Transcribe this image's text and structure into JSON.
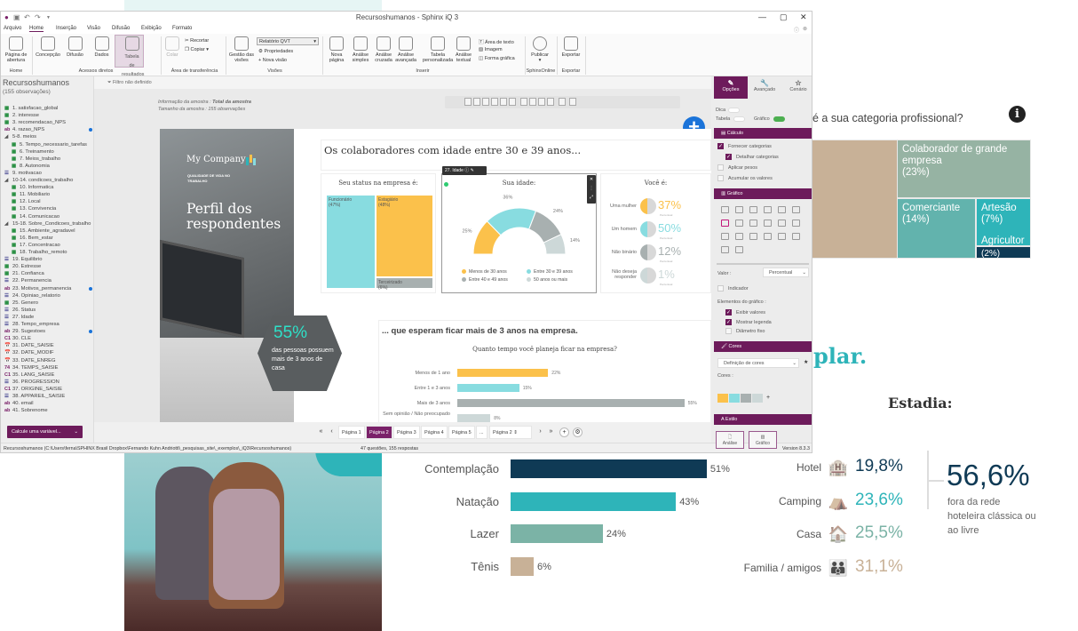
{
  "window": {
    "title": "Recursoshumanos - Sphinx iQ 3",
    "controls": [
      "—",
      "▢",
      "✕"
    ],
    "quick_access": [
      "sphinx-logo",
      "save-icon",
      "undo-icon",
      "redo-icon",
      "dropdown-icon"
    ]
  },
  "menu": [
    "Arquivo",
    "Home",
    "Inserção",
    "Visão",
    "Difusão",
    "Exibição",
    "Formato"
  ],
  "menu_active": "Home",
  "ribbon": {
    "home_group": {
      "label": "Home",
      "buttons": [
        "Página de abertura"
      ]
    },
    "acessos_group": {
      "label": "Acessos diretos",
      "buttons": [
        "Concepção",
        "Difusão",
        "Dados",
        "Tabela de resultados"
      ]
    },
    "transfer_group": {
      "label": "Área de transferência",
      "colar": "Colar",
      "recortar": "Recortar",
      "copiar": "Copiar"
    },
    "visoes_group": {
      "label": "Visões",
      "gestao": "Gestão das visões",
      "select": "Relatório QVT",
      "propriedades": "Propriedades",
      "nova_visao": "Nova visão"
    },
    "inserir_group": {
      "label": "Inserir",
      "buttons": [
        "Nova página",
        "Análise simples",
        "Análise cruzada",
        "Análise avançada",
        "Tabela personalizada",
        "Análise textual"
      ],
      "small": [
        "Área de texto",
        "Imagem",
        "Forma gráfica"
      ]
    },
    "sphinx_group": {
      "label": "SphinxOnline",
      "button": "Publicar"
    },
    "export_group": {
      "label": "Exportar",
      "button": "Exportar"
    }
  },
  "left_panel": {
    "title": "Recursoshumanos",
    "subtitle": "(155 observações)",
    "variables": [
      {
        "t": "q",
        "l": "1. satisfacao_global",
        "d": 0
      },
      {
        "t": "q",
        "l": "2. interesse",
        "d": 0
      },
      {
        "t": "q",
        "l": "3. recomendacao_NPS",
        "d": 0
      },
      {
        "t": "ab",
        "l": "4. razao_NPS",
        "d": 0,
        "dot": true
      },
      {
        "t": "g",
        "l": "5-8. meios",
        "d": 0
      },
      {
        "t": "q",
        "l": "5. Tempo_necessario_tarefas",
        "d": 1
      },
      {
        "t": "q",
        "l": "6. Treinamento",
        "d": 1
      },
      {
        "t": "q",
        "l": "7. Meios_trabalho",
        "d": 1
      },
      {
        "t": "q",
        "l": "8. Autonomia",
        "d": 1
      },
      {
        "t": "ql",
        "l": "9. motivacao",
        "d": 0
      },
      {
        "t": "g",
        "l": "10-14. condicoes_trabalho",
        "d": 0
      },
      {
        "t": "q",
        "l": "10. Informatica",
        "d": 1
      },
      {
        "t": "q",
        "l": "11. Mobiliario",
        "d": 1
      },
      {
        "t": "q",
        "l": "12. Local",
        "d": 1
      },
      {
        "t": "q",
        "l": "13. Convivencia",
        "d": 1
      },
      {
        "t": "q",
        "l": "14. Comunicacao",
        "d": 1
      },
      {
        "t": "g",
        "l": "15-18. Sobre_Condicoes_trabalho",
        "d": 0
      },
      {
        "t": "q",
        "l": "15. Ambiente_agradavel",
        "d": 1
      },
      {
        "t": "q",
        "l": "16. Bem_estar",
        "d": 1
      },
      {
        "t": "q",
        "l": "17. Concentracao",
        "d": 1
      },
      {
        "t": "q",
        "l": "18. Trabalho_remoto",
        "d": 1
      },
      {
        "t": "ql",
        "l": "19. Equilibrio",
        "d": 0
      },
      {
        "t": "q",
        "l": "20. Estresse",
        "d": 0
      },
      {
        "t": "q",
        "l": "21. Confianca",
        "d": 0
      },
      {
        "t": "ql",
        "l": "22. Permanencia",
        "d": 0
      },
      {
        "t": "ab",
        "l": "23. Motivos_permanencia",
        "d": 0,
        "dot": true
      },
      {
        "t": "ql",
        "l": "24. Opiniao_relatorio",
        "d": 0
      },
      {
        "t": "q",
        "l": "25. Genero",
        "d": 0
      },
      {
        "t": "ql",
        "l": "26. Status",
        "d": 0
      },
      {
        "t": "ql",
        "l": "27. Idade",
        "d": 0
      },
      {
        "t": "ql",
        "l": "28. Tempo_empresa",
        "d": 0
      },
      {
        "t": "ab",
        "l": "29. Sugestoes",
        "d": 0,
        "dot": true
      },
      {
        "t": "c",
        "l": "30. CLE",
        "d": 0
      },
      {
        "t": "dt",
        "l": "31. DATE_SAISIE",
        "d": 0
      },
      {
        "t": "dt",
        "l": "32. DATE_MODIF",
        "d": 0
      },
      {
        "t": "dt",
        "l": "33. DATE_ENREG",
        "d": 0
      },
      {
        "t": "n",
        "l": "34. TEMPS_SAISIE",
        "d": 0
      },
      {
        "t": "c",
        "l": "35. LANG_SAISIE",
        "d": 0
      },
      {
        "t": "ql",
        "l": "36. PROGRESSION",
        "d": 0
      },
      {
        "t": "c",
        "l": "37. ORIGINE_SAISIE",
        "d": 0
      },
      {
        "t": "ql",
        "l": "38. APPAREIL_SAISIE",
        "d": 0
      },
      {
        "t": "ab",
        "l": "40. email",
        "d": 0
      },
      {
        "t": "ab",
        "l": "41. Sobrenome",
        "d": 0
      }
    ],
    "calc_button": "Calcule uma variável..."
  },
  "filter": {
    "label": "Filtro não definido"
  },
  "sample": {
    "info_label": "Informação da amostra :",
    "info_value": "Total da amostra",
    "size_label": "Tamanho da amostra : 155 observações"
  },
  "slide": {
    "company": "My Company",
    "tagline": "QUALIDADE DE VIDA NO TRABALHO",
    "heading": "Perfil dos respondentes",
    "hex_value": "55%",
    "hex_text": "das pessoas possuem mais de 3 anos de casa",
    "title": "Os colaboradores com idade entre 30 e 39 anos...",
    "status_chart": {
      "title": "Seu status na empresa é:",
      "items": [
        {
          "label": "Funcionário",
          "pct": "(47%)",
          "value": 47,
          "color": "#88dce0"
        },
        {
          "label": "Estagiário",
          "pct": "(48%)",
          "value": 48,
          "color": "#fbc14b"
        },
        {
          "label": "Terceirizado",
          "pct": "(6%)",
          "value": 6,
          "color": "#a8b0b0"
        }
      ]
    },
    "selection_tag": "27. Idade",
    "age_chart": {
      "title": "Sua idade:",
      "items": [
        {
          "label": "Menos de 30 anos",
          "value": 25,
          "color": "#fbc14b"
        },
        {
          "label": "Entre 30 e 39 anos",
          "value": 36,
          "color": "#88dce0"
        },
        {
          "label": "Entre 40 e 49 anos",
          "value": 24,
          "color": "#a8b0b0"
        },
        {
          "label": "50 anos ou mais",
          "value": 14,
          "color": "#cdd8d8"
        }
      ]
    },
    "gender_chart": {
      "title": "Você é:",
      "unit_label": "Percentual",
      "items": [
        {
          "label": "Uma mulher",
          "value": "37%",
          "color": "#fbc14b"
        },
        {
          "label": "Um homem",
          "value": "50%",
          "color": "#88dce0"
        },
        {
          "label": "Não binário",
          "value": "12%",
          "color": "#a8b0b0"
        },
        {
          "label": "Não deseja responder",
          "value": "1%",
          "color": "#cdd8d8"
        }
      ]
    },
    "tenure_title": "... que esperam ficar mais de 3 anos na empresa.",
    "tenure_chart": {
      "title": "Quanto tempo você planeja ficar na empresa?",
      "items": [
        {
          "label": "Menos de 1 ano",
          "value": 22,
          "color": "#fbc14b"
        },
        {
          "label": "Entre 1 e 3 anos",
          "value": 15,
          "color": "#88dce0"
        },
        {
          "label": "Mais de 3 anos",
          "value": 55,
          "color": "#a8b0b0"
        },
        {
          "label": "Sem opinião / Não preocupado",
          "value": 8,
          "color": "#cdd8d8"
        }
      ]
    }
  },
  "pagination": {
    "pages": [
      "Página 1",
      "Página 2",
      "Página 3",
      "Página 4",
      "Página 5",
      "..."
    ],
    "active": "Página 2",
    "select": "Página 2"
  },
  "statusbar": {
    "path": "Recursoshumanos (C:\\Users\\ferna\\SPHINX Brasil Dropbox\\Fernando Kuhn Andriotti\\_pesquisas_site\\_exemplos\\_iQ3\\Recursoshumanos)",
    "count": "47 questões, 155 respostas",
    "version": "Version 8.3.3"
  },
  "right_panel": {
    "tabs": [
      {
        "label": "Opções",
        "icon": "✎"
      },
      {
        "label": "Avançado",
        "icon": "🔧"
      },
      {
        "label": "Cenário",
        "icon": "☆"
      }
    ],
    "dica": "Dica",
    "tabela": "Tabela",
    "grafico": "Gráfico",
    "calculo": {
      "header": "Cálculo",
      "items": [
        {
          "label": "Fornecer categorias",
          "on": true
        },
        {
          "label": "Detalhar categorias",
          "on": true
        },
        {
          "label": "Aplicar pesos",
          "on": false
        },
        {
          "label": "Acumular os valores",
          "on": false
        }
      ]
    },
    "grafico_header": "Gráfico",
    "valor_label": "Valor :",
    "valor_select": "Percentual",
    "indicador": "Indicador",
    "elementos_label": "Elementos do gráfico :",
    "elementos": [
      {
        "label": "Exibir valores",
        "on": true
      },
      {
        "label": "Mostrar legenda",
        "on": true
      },
      {
        "label": "Diâmetro fixo",
        "on": false
      }
    ],
    "cores_header": "Cores",
    "cores_select": "Definição de cores",
    "cores_label": "Cores :",
    "swatches": [
      "#fbc14b",
      "#88dce0",
      "#a8b0b0",
      "#cdd8d8"
    ],
    "estilo_header": "Estilo",
    "estilo_buttons": [
      "Análise",
      "Gráfico"
    ]
  },
  "background": {
    "activity_chart": {
      "items": [
        {
          "label": "Contemplação",
          "value": 51,
          "color": "#0f3a55"
        },
        {
          "label": "Natação",
          "value": 43,
          "color": "#2eb4b9"
        },
        {
          "label": "Lazer",
          "value": 24,
          "color": "#7bb3a6"
        },
        {
          "label": "Tênis",
          "value": 6,
          "color": "#c8b197"
        }
      ]
    },
    "category_question": "é a sua categoria profissional?",
    "category_treemap": [
      {
        "label": "Colaborador de grande empresa",
        "pct": "(23%)",
        "color": "#96b3a3"
      },
      {
        "label": "Comerciante",
        "pct": "(14%)",
        "color": "#62b3ad"
      },
      {
        "label": "Artesão",
        "pct": "(7%)",
        "color": "#2eb4b9"
      },
      {
        "label": "Agricultor",
        "pct": "(2%)",
        "color": "#0f3a55"
      }
    ],
    "plar_text": "plar.",
    "estadia": {
      "title": "Estadia:",
      "items": [
        {
          "label": "Hotel",
          "value": "19,8%",
          "color": "#0f3a55",
          "icon": "🏨"
        },
        {
          "label": "Camping",
          "value": "23,6%",
          "color": "#2eb4b9",
          "icon": "⛺"
        },
        {
          "label": "Casa",
          "value": "25,5%",
          "color": "#7bb3a6",
          "icon": "🏠"
        },
        {
          "label": "Familia / amigos",
          "value": "31,1%",
          "color": "#c8b197",
          "icon": "👪"
        }
      ],
      "big_value": "56,6%",
      "big_text": "fora da rede hoteleira clássica ou ao livre"
    }
  }
}
